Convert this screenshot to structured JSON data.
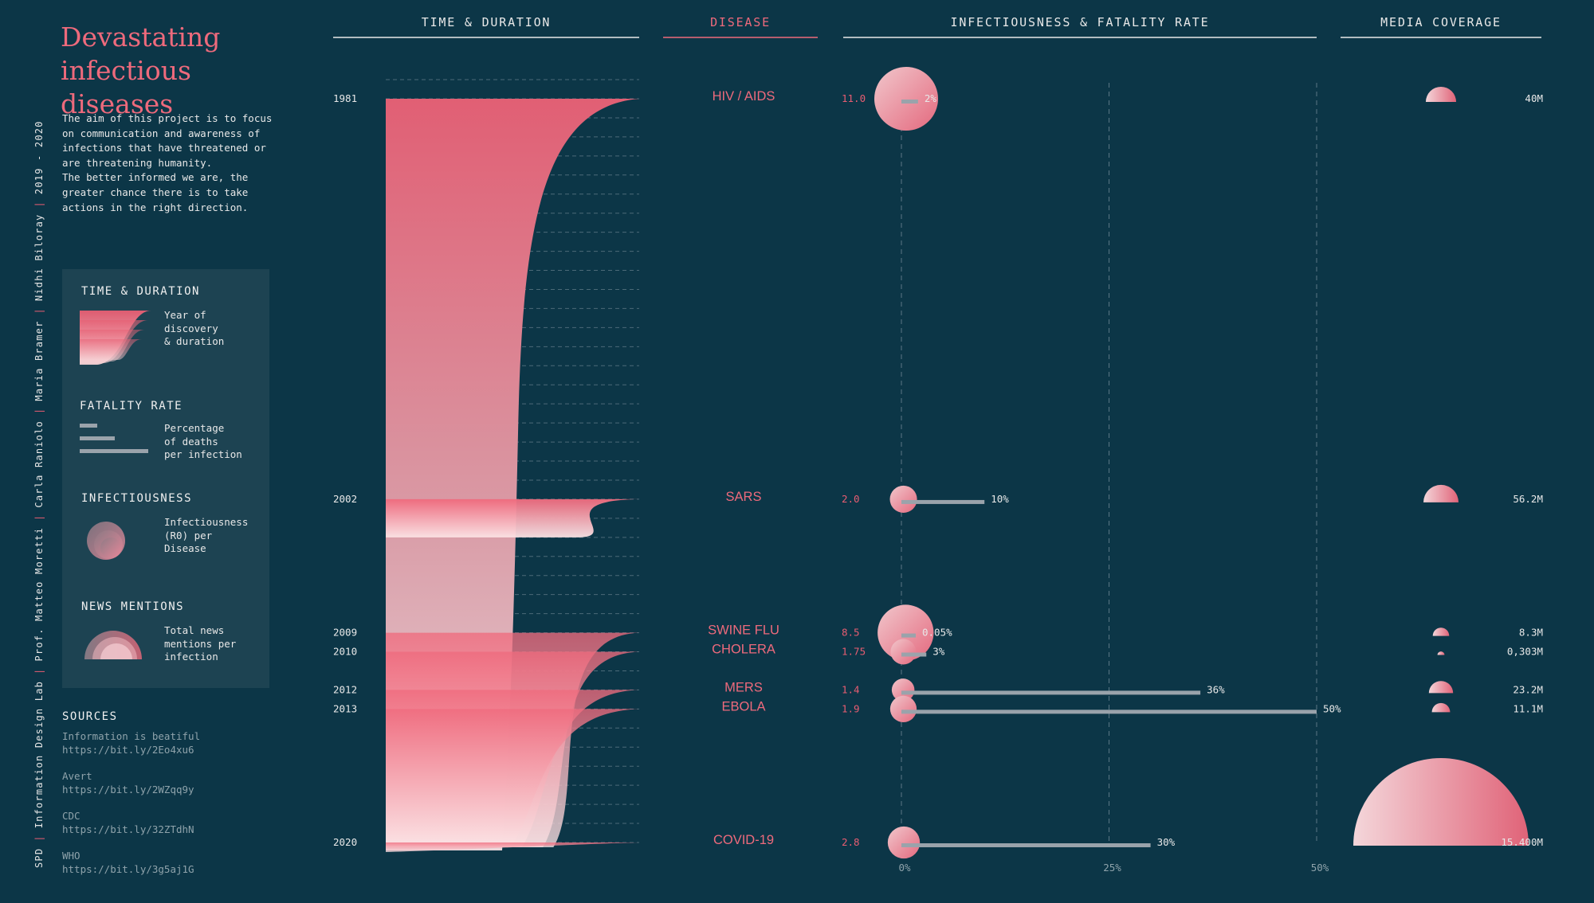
{
  "title": "Devastating infectious diseases",
  "intro": "The aim of this project is to focus on communication and awareness of infections that have threatened or are threatening humanity.\nThe better informed we are, the greater chance there is to take actions in the right direction.",
  "credits": [
    "SPD",
    "Information Design Lab",
    "Prof. Matteo Moretti",
    "Carla Raniolo",
    "Maria Bramer",
    "Nidhi Biloray",
    "2019 - 2020"
  ],
  "legend": {
    "time": {
      "heading": "TIME & DURATION",
      "text": "Year of\ndiscovery\n& duration"
    },
    "fatality": {
      "heading": "FATALITY RATE",
      "text": "Percentage\nof deaths\nper infection"
    },
    "infectiousness": {
      "heading": "INFECTIOUSNESS",
      "text": "Infectiousness\n(R0) per\nDisease"
    },
    "news": {
      "heading": "NEWS MENTIONS",
      "text": "Total news\nmentions per\ninfection"
    }
  },
  "sources": {
    "heading": "SOURCES",
    "items": [
      {
        "name": "Information is beatiful",
        "url": "https://bit.ly/2Eo4xu6"
      },
      {
        "name": "Avert",
        "url": "https://bit.ly/2WZqq9y"
      },
      {
        "name": "CDC",
        "url": "https://bit.ly/32ZTdhN"
      },
      {
        "name": "WHO",
        "url": "https://bit.ly/3g5aj1G"
      }
    ]
  },
  "colors": {
    "background": "#0c3647",
    "accent": "#ee6a7c",
    "pink": "#e85d72",
    "panel": "#1d4352",
    "bar": "#9aa3ab"
  },
  "chart_data": {
    "type": "table",
    "columns": [
      "TIME & DURATION",
      "DISEASE",
      "INFECTIOUSNESS & FATALITY RATE",
      "MEDIA COVERAGE"
    ],
    "year_range": [
      1981,
      2020
    ],
    "fatality_axis": {
      "ticks": [
        "0%",
        "25%",
        "50%"
      ],
      "min": 0,
      "max": 50
    },
    "rows": [
      {
        "year": 1981,
        "year_label": "1981",
        "disease": "HIV / AIDS",
        "r0": 11.0,
        "r0_label": "11.0",
        "fatality": 2,
        "fatality_label": "2%",
        "media": 40,
        "media_label": "40M"
      },
      {
        "year": 2002,
        "year_label": "2002",
        "disease": "SARS",
        "r0": 2.0,
        "r0_label": "2.0",
        "fatality": 10,
        "fatality_label": "10%",
        "media": 56.2,
        "media_label": "56.2M"
      },
      {
        "year": 2009,
        "year_label": "2009",
        "disease": "SWINE FLU",
        "r0": 8.5,
        "r0_label": "8.5",
        "fatality": 0.05,
        "fatality_label": "0.05%",
        "media": 8.3,
        "media_label": "8.3M"
      },
      {
        "year": 2010,
        "year_label": "2010",
        "disease": "CHOLERA",
        "r0": 1.75,
        "r0_label": "1.75",
        "fatality": 3,
        "fatality_label": "3%",
        "media": 0.303,
        "media_label": "0,303M"
      },
      {
        "year": 2012,
        "year_label": "2012",
        "disease": "MERS",
        "r0": 1.4,
        "r0_label": "1.4",
        "fatality": 36,
        "fatality_label": "36%",
        "media": 23.2,
        "media_label": "23.2M"
      },
      {
        "year": 2013,
        "year_label": "2013",
        "disease": "EBOLA",
        "r0": 1.9,
        "r0_label": "1.9",
        "fatality": 50,
        "fatality_label": "50%",
        "media": 11.1,
        "media_label": "11.1M"
      },
      {
        "year": 2020,
        "year_label": "2020",
        "disease": "COVID-19",
        "r0": 2.8,
        "r0_label": "2.8",
        "fatality": 30,
        "fatality_label": "30%",
        "media": 15400,
        "media_label": "15.400M"
      }
    ]
  }
}
